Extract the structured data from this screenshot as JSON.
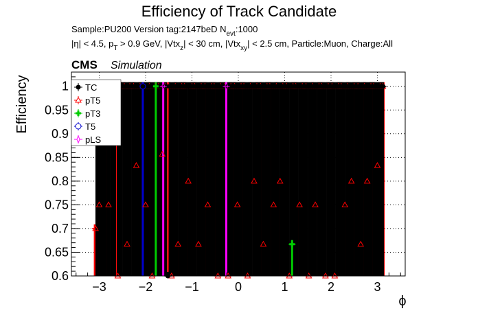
{
  "chart_data": {
    "type": "scatter",
    "title": "Efficiency of Track Candidate",
    "subtitle1": "Sample:PU200   Version tag:2147beD  N",
    "subtitle1_sub": "evt",
    "subtitle1_tail": ":1000",
    "subtitle2": "|η| < 4.5, p",
    "subtitle2_sub1": "T",
    "subtitle2_mid1": " > 0.9 GeV, |Vtx",
    "subtitle2_sub2": "z",
    "subtitle2_mid2": "| < 30 cm, |Vtx",
    "subtitle2_sub3": "xy",
    "subtitle2_tail": "| < 2.5 cm, Particle:Muon, Charge:All",
    "cms_label": "CMS",
    "sim_label": "Simulation",
    "xlabel": "ϕ",
    "ylabel": "Efficiency",
    "xlim": [
      -3.6,
      3.6
    ],
    "ylim": [
      0.6,
      1.03
    ],
    "xticks": [
      -3,
      -2,
      -1,
      0,
      1,
      2,
      3
    ],
    "xtick_labels": [
      "−3",
      "−2",
      "−1",
      "0",
      "1",
      "2",
      "3"
    ],
    "yticks": [
      0.6,
      0.65,
      0.7,
      0.75,
      0.8,
      0.85,
      0.9,
      0.95,
      1.0
    ],
    "ytick_labels": [
      "0.6",
      "0.65",
      "0.7",
      "0.75",
      "0.8",
      "0.85",
      "0.9",
      "0.95",
      "1"
    ],
    "grid": true,
    "legend_position": "top-left",
    "legend": [
      "TC",
      "pT5",
      "pT3",
      "T5",
      "pLS"
    ],
    "colors": {
      "TC": "#000000",
      "pT5": "#ff0000",
      "pT3": "#00cc00",
      "T5": "#0000cc",
      "pLS": "#ff00ff"
    },
    "series": [
      {
        "name": "TC",
        "x": [
          -3.06,
          -3.04,
          -3.0,
          -2.96,
          -2.94,
          -2.9,
          -2.86,
          -2.82,
          -2.78,
          -2.74,
          -2.7,
          -2.66,
          -2.6,
          -2.56,
          -2.52,
          -2.48,
          -2.44,
          -2.4,
          -2.36,
          -2.32,
          -2.28,
          -2.24,
          -2.2,
          -2.16,
          -2.12,
          -2.08,
          -2.04,
          -2.0,
          -1.96,
          -1.92,
          -1.88,
          -1.84,
          -1.8,
          -1.76,
          -1.72,
          -1.68,
          -1.64,
          -1.6,
          -1.56,
          -1.52,
          -1.48,
          -1.44,
          -1.4,
          -1.36,
          -1.32,
          -1.28,
          -1.24,
          -1.2,
          -1.16,
          -1.12,
          -1.08,
          -1.04,
          -1.0,
          -0.96,
          -0.92,
          -0.88,
          -0.84,
          -0.8,
          -0.76,
          -0.72,
          -0.68,
          -0.64,
          -0.6,
          -0.56,
          -0.52,
          -0.48,
          -0.44,
          -0.4,
          -0.36,
          -0.32,
          -0.28,
          -0.24,
          -0.2,
          -0.16,
          -0.12,
          -0.08,
          -0.04,
          0.0,
          0.04,
          0.08,
          0.12,
          0.16,
          0.2,
          0.24,
          0.28,
          0.32,
          0.36,
          0.4,
          0.44,
          0.48,
          0.52,
          0.56,
          0.6,
          0.64,
          0.68,
          0.72,
          0.76,
          0.8,
          0.84,
          0.88,
          0.92,
          0.96,
          1.0,
          1.04,
          1.08,
          1.12,
          1.16,
          1.2,
          1.24,
          1.28,
          1.32,
          1.36,
          1.4,
          1.44,
          1.48,
          1.52,
          1.56,
          1.6,
          1.64,
          1.68,
          1.72,
          1.76,
          1.8,
          1.84,
          1.88,
          1.92,
          1.96,
          2.0,
          2.04,
          2.08,
          2.12,
          2.16,
          2.2,
          2.24,
          2.28,
          2.32,
          2.36,
          2.4,
          2.44,
          2.48,
          2.52,
          2.56,
          2.6,
          2.64,
          2.68,
          2.72,
          2.76,
          2.8,
          2.84,
          2.88,
          2.92,
          2.96,
          3.0,
          3.04,
          3.08,
          3.12
        ],
        "y": [
          1,
          1,
          1,
          1,
          1,
          1,
          1,
          1,
          1,
          1,
          1,
          1,
          1,
          1,
          1,
          1,
          1,
          1,
          1,
          1,
          1,
          1,
          1,
          1,
          1,
          1,
          1,
          1,
          1,
          1,
          1,
          1,
          1,
          1,
          1,
          1,
          1,
          1,
          1,
          0.6,
          1,
          1,
          1,
          1,
          1,
          1,
          1,
          1,
          1,
          1,
          1,
          1,
          1,
          1,
          1,
          1,
          1,
          1,
          1,
          1,
          1,
          1,
          1,
          1,
          1,
          1,
          1,
          1,
          1,
          1,
          1,
          1,
          1,
          1,
          1,
          1,
          1,
          1,
          1,
          1,
          1,
          1,
          1,
          1,
          1,
          1,
          1,
          1,
          1,
          1,
          1,
          1,
          1,
          1,
          1,
          1,
          1,
          1,
          1,
          1,
          1,
          1,
          1,
          1,
          1,
          1,
          1,
          1,
          1,
          1,
          1,
          1,
          1,
          1,
          1,
          1,
          1,
          1,
          1,
          1,
          1,
          1,
          1,
          1,
          1,
          1,
          1,
          1,
          1,
          1,
          1,
          1,
          1,
          1,
          1,
          1,
          1,
          1,
          1,
          1,
          1,
          1,
          1,
          1,
          1,
          1,
          1,
          1,
          1,
          1,
          1,
          1,
          1,
          1,
          1,
          1
        ]
      },
      {
        "name": "pT5",
        "x": [
          -3.08,
          -3.04,
          -3.0,
          -2.94,
          -2.86,
          -2.8,
          -2.72,
          -2.66,
          -2.6,
          -2.54,
          -2.46,
          -2.4,
          -2.34,
          -2.26,
          -2.2,
          -2.12,
          -2.06,
          -2.0,
          -1.92,
          -1.86,
          -1.78,
          -1.72,
          -1.64,
          -1.58,
          -1.5,
          -1.44,
          -1.36,
          -1.3,
          -1.22,
          -1.16,
          -1.08,
          -1.0,
          -0.94,
          -0.86,
          -0.8,
          -0.72,
          -0.66,
          -0.58,
          -0.52,
          -0.44,
          -0.38,
          -0.3,
          -0.22,
          -0.16,
          -0.08,
          -0.02,
          0.06,
          0.12,
          0.2,
          0.26,
          0.34,
          0.4,
          0.48,
          0.54,
          0.62,
          0.68,
          0.76,
          0.82,
          0.9,
          0.96,
          1.04,
          1.1,
          1.18,
          1.24,
          1.32,
          1.38,
          1.46,
          1.52,
          1.6,
          1.66,
          1.74,
          1.8,
          1.88,
          1.94,
          2.02,
          2.08,
          2.16,
          2.22,
          2.3,
          2.36,
          2.44,
          2.5,
          2.58,
          2.64,
          2.72,
          2.78,
          2.86,
          2.92,
          3.0,
          3.06,
          3.12
        ],
        "y": [
          0.7,
          1,
          0.75,
          1,
          1,
          0.75,
          1,
          1,
          0.6,
          1,
          1,
          0.667,
          1,
          1,
          0.833,
          1,
          1,
          0.75,
          1,
          0.6,
          1,
          1,
          0.857,
          1,
          1,
          0.6,
          1,
          0.667,
          1,
          1,
          0.8,
          1,
          1,
          0.667,
          1,
          1,
          0.75,
          1,
          1,
          0.6,
          1,
          1,
          0.6,
          1,
          1,
          0.75,
          1,
          1,
          0.6,
          1,
          0.8,
          1,
          1,
          0.667,
          1,
          1,
          0.75,
          1,
          0.8,
          1,
          1,
          0.6,
          1,
          1,
          0.75,
          1,
          1,
          0.6,
          1,
          0.75,
          1,
          1,
          0.6,
          1,
          1,
          0.6,
          1,
          1,
          0.75,
          1,
          0.8,
          1,
          1,
          0.667,
          1,
          0.8,
          1,
          1,
          0.833,
          1,
          1
        ]
      },
      {
        "name": "pT3",
        "x": [
          -1.78,
          1.16
        ],
        "y": [
          1,
          0.667
        ]
      },
      {
        "name": "T5",
        "x": [
          -2.06
        ],
        "y": [
          1
        ]
      },
      {
        "name": "pLS",
        "x": [
          -1.62,
          -0.26
        ],
        "y": [
          1,
          1
        ]
      }
    ]
  }
}
